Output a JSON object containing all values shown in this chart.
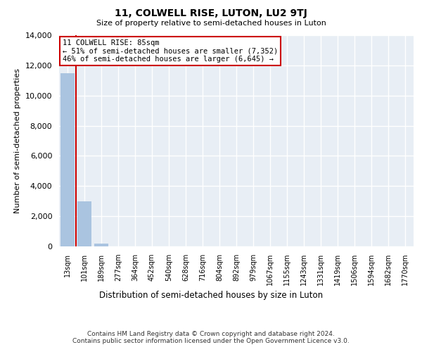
{
  "title": "11, COLWELL RISE, LUTON, LU2 9TJ",
  "subtitle": "Size of property relative to semi-detached houses in Luton",
  "xlabel": "Distribution of semi-detached houses by size in Luton",
  "ylabel": "Number of semi-detached properties",
  "categories": [
    "13sqm",
    "101sqm",
    "189sqm",
    "277sqm",
    "364sqm",
    "452sqm",
    "540sqm",
    "628sqm",
    "716sqm",
    "804sqm",
    "892sqm",
    "979sqm",
    "1067sqm",
    "1155sqm",
    "1243sqm",
    "1331sqm",
    "1419sqm",
    "1506sqm",
    "1594sqm",
    "1682sqm",
    "1770sqm"
  ],
  "values": [
    11500,
    3000,
    200,
    0,
    0,
    0,
    0,
    0,
    0,
    0,
    0,
    0,
    0,
    0,
    0,
    0,
    0,
    0,
    0,
    0,
    0
  ],
  "bar_color": "#aac4e0",
  "property_line_x": 0.5,
  "annotation_text": "11 COLWELL RISE: 85sqm\n← 51% of semi-detached houses are smaller (7,352)\n46% of semi-detached houses are larger (6,645) →",
  "annotation_box_color": "#cc0000",
  "ylim": [
    0,
    14000
  ],
  "yticks": [
    0,
    2000,
    4000,
    6000,
    8000,
    10000,
    12000,
    14000
  ],
  "background_color": "#e8eef5",
  "grid_color": "#ffffff",
  "footer_line1": "Contains HM Land Registry data © Crown copyright and database right 2024.",
  "footer_line2": "Contains public sector information licensed under the Open Government Licence v3.0."
}
